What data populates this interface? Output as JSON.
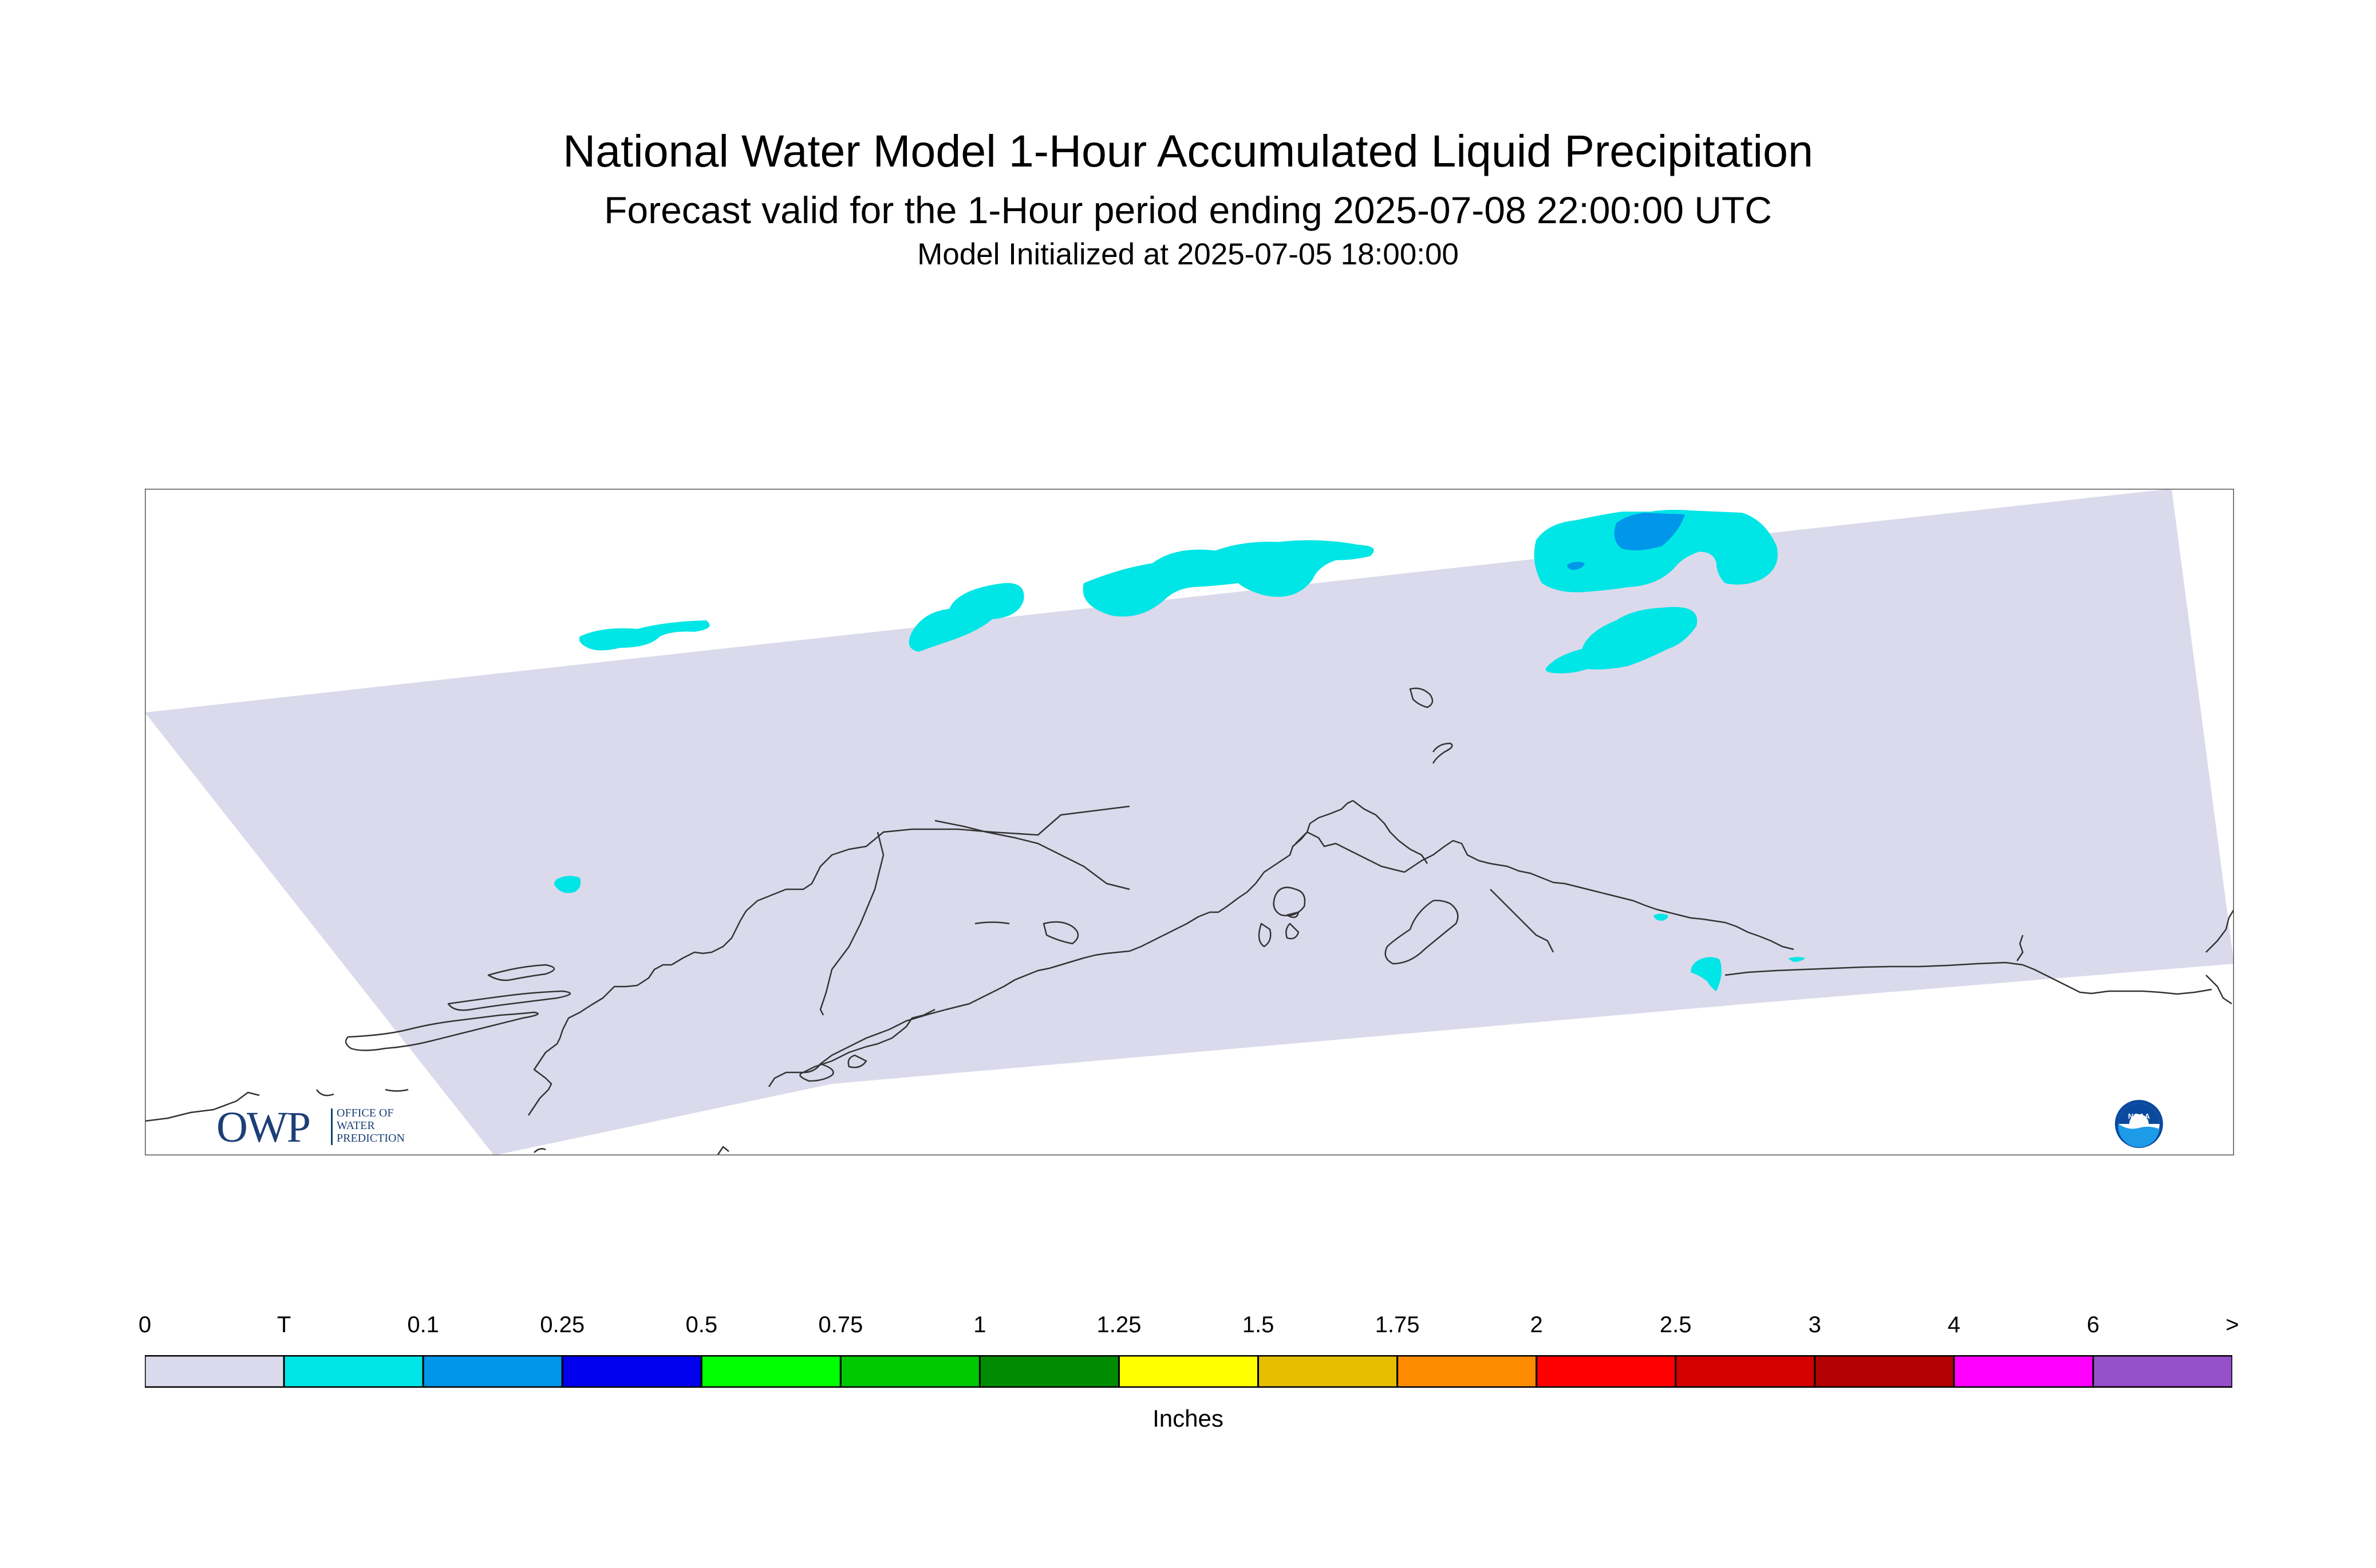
{
  "title": "National Water Model 1-Hour Accumulated Liquid Precipitation",
  "subtitle": "Forecast valid for the 1-Hour period ending 2025-07-08 22:00:00 UTC",
  "subtitle2": "Model Initialized at 2025-07-05 18:00:00",
  "logos": {
    "owp_letters": "OWP",
    "owp_line1": "OFFICE OF",
    "owp_line2": "WATER",
    "owp_line3": "PREDICTION",
    "noaa_text": "NOAA"
  },
  "colors": {
    "domain_fill": "#dadaec",
    "coastline": "#333333",
    "precip_trace": "#00e5e5",
    "precip_light": "#0096ea"
  },
  "legend": {
    "units": "Inches",
    "tick_labels": [
      "0",
      "T",
      "0.1",
      "0.25",
      "0.5",
      "0.75",
      "1",
      "1.25",
      "1.5",
      "1.75",
      "2",
      "2.5",
      "3",
      "4",
      "6",
      ">"
    ],
    "bins": [
      {
        "color": "#dadaec"
      },
      {
        "color": "#00e5e5"
      },
      {
        "color": "#0096ea"
      },
      {
        "color": "#0000ee"
      },
      {
        "color": "#00ff00"
      },
      {
        "color": "#00c800"
      },
      {
        "color": "#008c00"
      },
      {
        "color": "#ffff00"
      },
      {
        "color": "#e6be00"
      },
      {
        "color": "#ff8c00"
      },
      {
        "color": "#ff0000"
      },
      {
        "color": "#d20000"
      },
      {
        "color": "#b40000"
      },
      {
        "color": "#ff00ff"
      },
      {
        "color": "#9650c8"
      }
    ]
  }
}
